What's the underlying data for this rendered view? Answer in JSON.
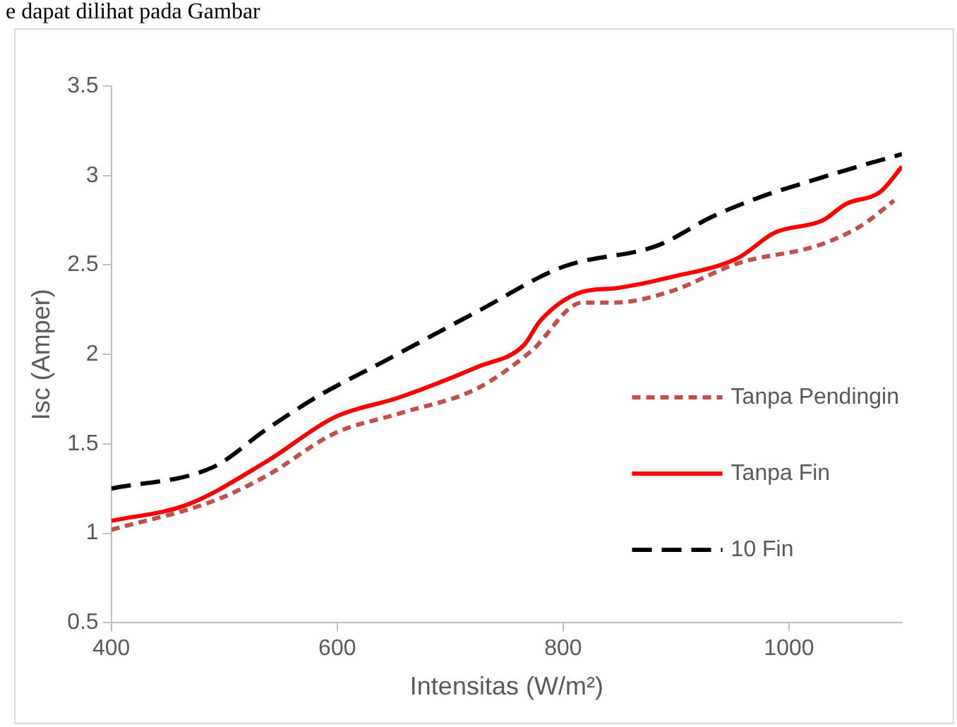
{
  "chart_data": {
    "type": "line",
    "xlabel": "Intensitas (W/m²)",
    "ylabel": "Isc (Amper)",
    "annotations": [
      "e dapat dilihat pada Gambar"
    ],
    "xlim": [
      400,
      1100
    ],
    "xticks": [
      400,
      600,
      800,
      1000
    ],
    "ylim": [
      0.5,
      3.5
    ],
    "yticks": [
      0.5,
      1,
      1.5,
      2,
      2.5,
      3,
      3.5
    ],
    "grid": false,
    "legend": "right",
    "marker": "none",
    "series": [
      {
        "name": "Tanpa Pendingin",
        "color": "#c0504d",
        "line_style": "dotted",
        "x": [
          400,
          490,
          537,
          598,
          655,
          724,
          772,
          817,
          846,
          894,
          955,
          1026,
          1064,
          1093
        ],
        "values": [
          1.02,
          1.18,
          1.32,
          1.56,
          1.67,
          1.81,
          2.02,
          2.29,
          2.29,
          2.35,
          2.51,
          2.61,
          2.72,
          2.86
        ]
      },
      {
        "name": "Tanpa Fin",
        "color": "#ff0000",
        "line_style": "solid",
        "x": [
          400,
          467,
          537,
          598,
          655,
          724,
          765,
          780,
          817,
          846,
          894,
          955,
          987,
          1030,
          1050,
          1081,
          1100
        ],
        "values": [
          1.07,
          1.16,
          1.4,
          1.65,
          1.76,
          1.93,
          2.05,
          2.19,
          2.35,
          2.37,
          2.43,
          2.54,
          2.68,
          2.75,
          2.84,
          2.91,
          3.05
        ]
      },
      {
        "name": "10 Fin",
        "color": "#000000",
        "line_style": "dashed",
        "x": [
          400,
          490,
          537,
          584,
          641,
          724,
          800,
          884,
          932,
          979,
          1004,
          1061,
          1100
        ],
        "values": [
          1.25,
          1.37,
          1.58,
          1.77,
          1.96,
          2.24,
          2.49,
          2.61,
          2.77,
          2.89,
          2.94,
          3.05,
          3.12
        ]
      }
    ]
  }
}
